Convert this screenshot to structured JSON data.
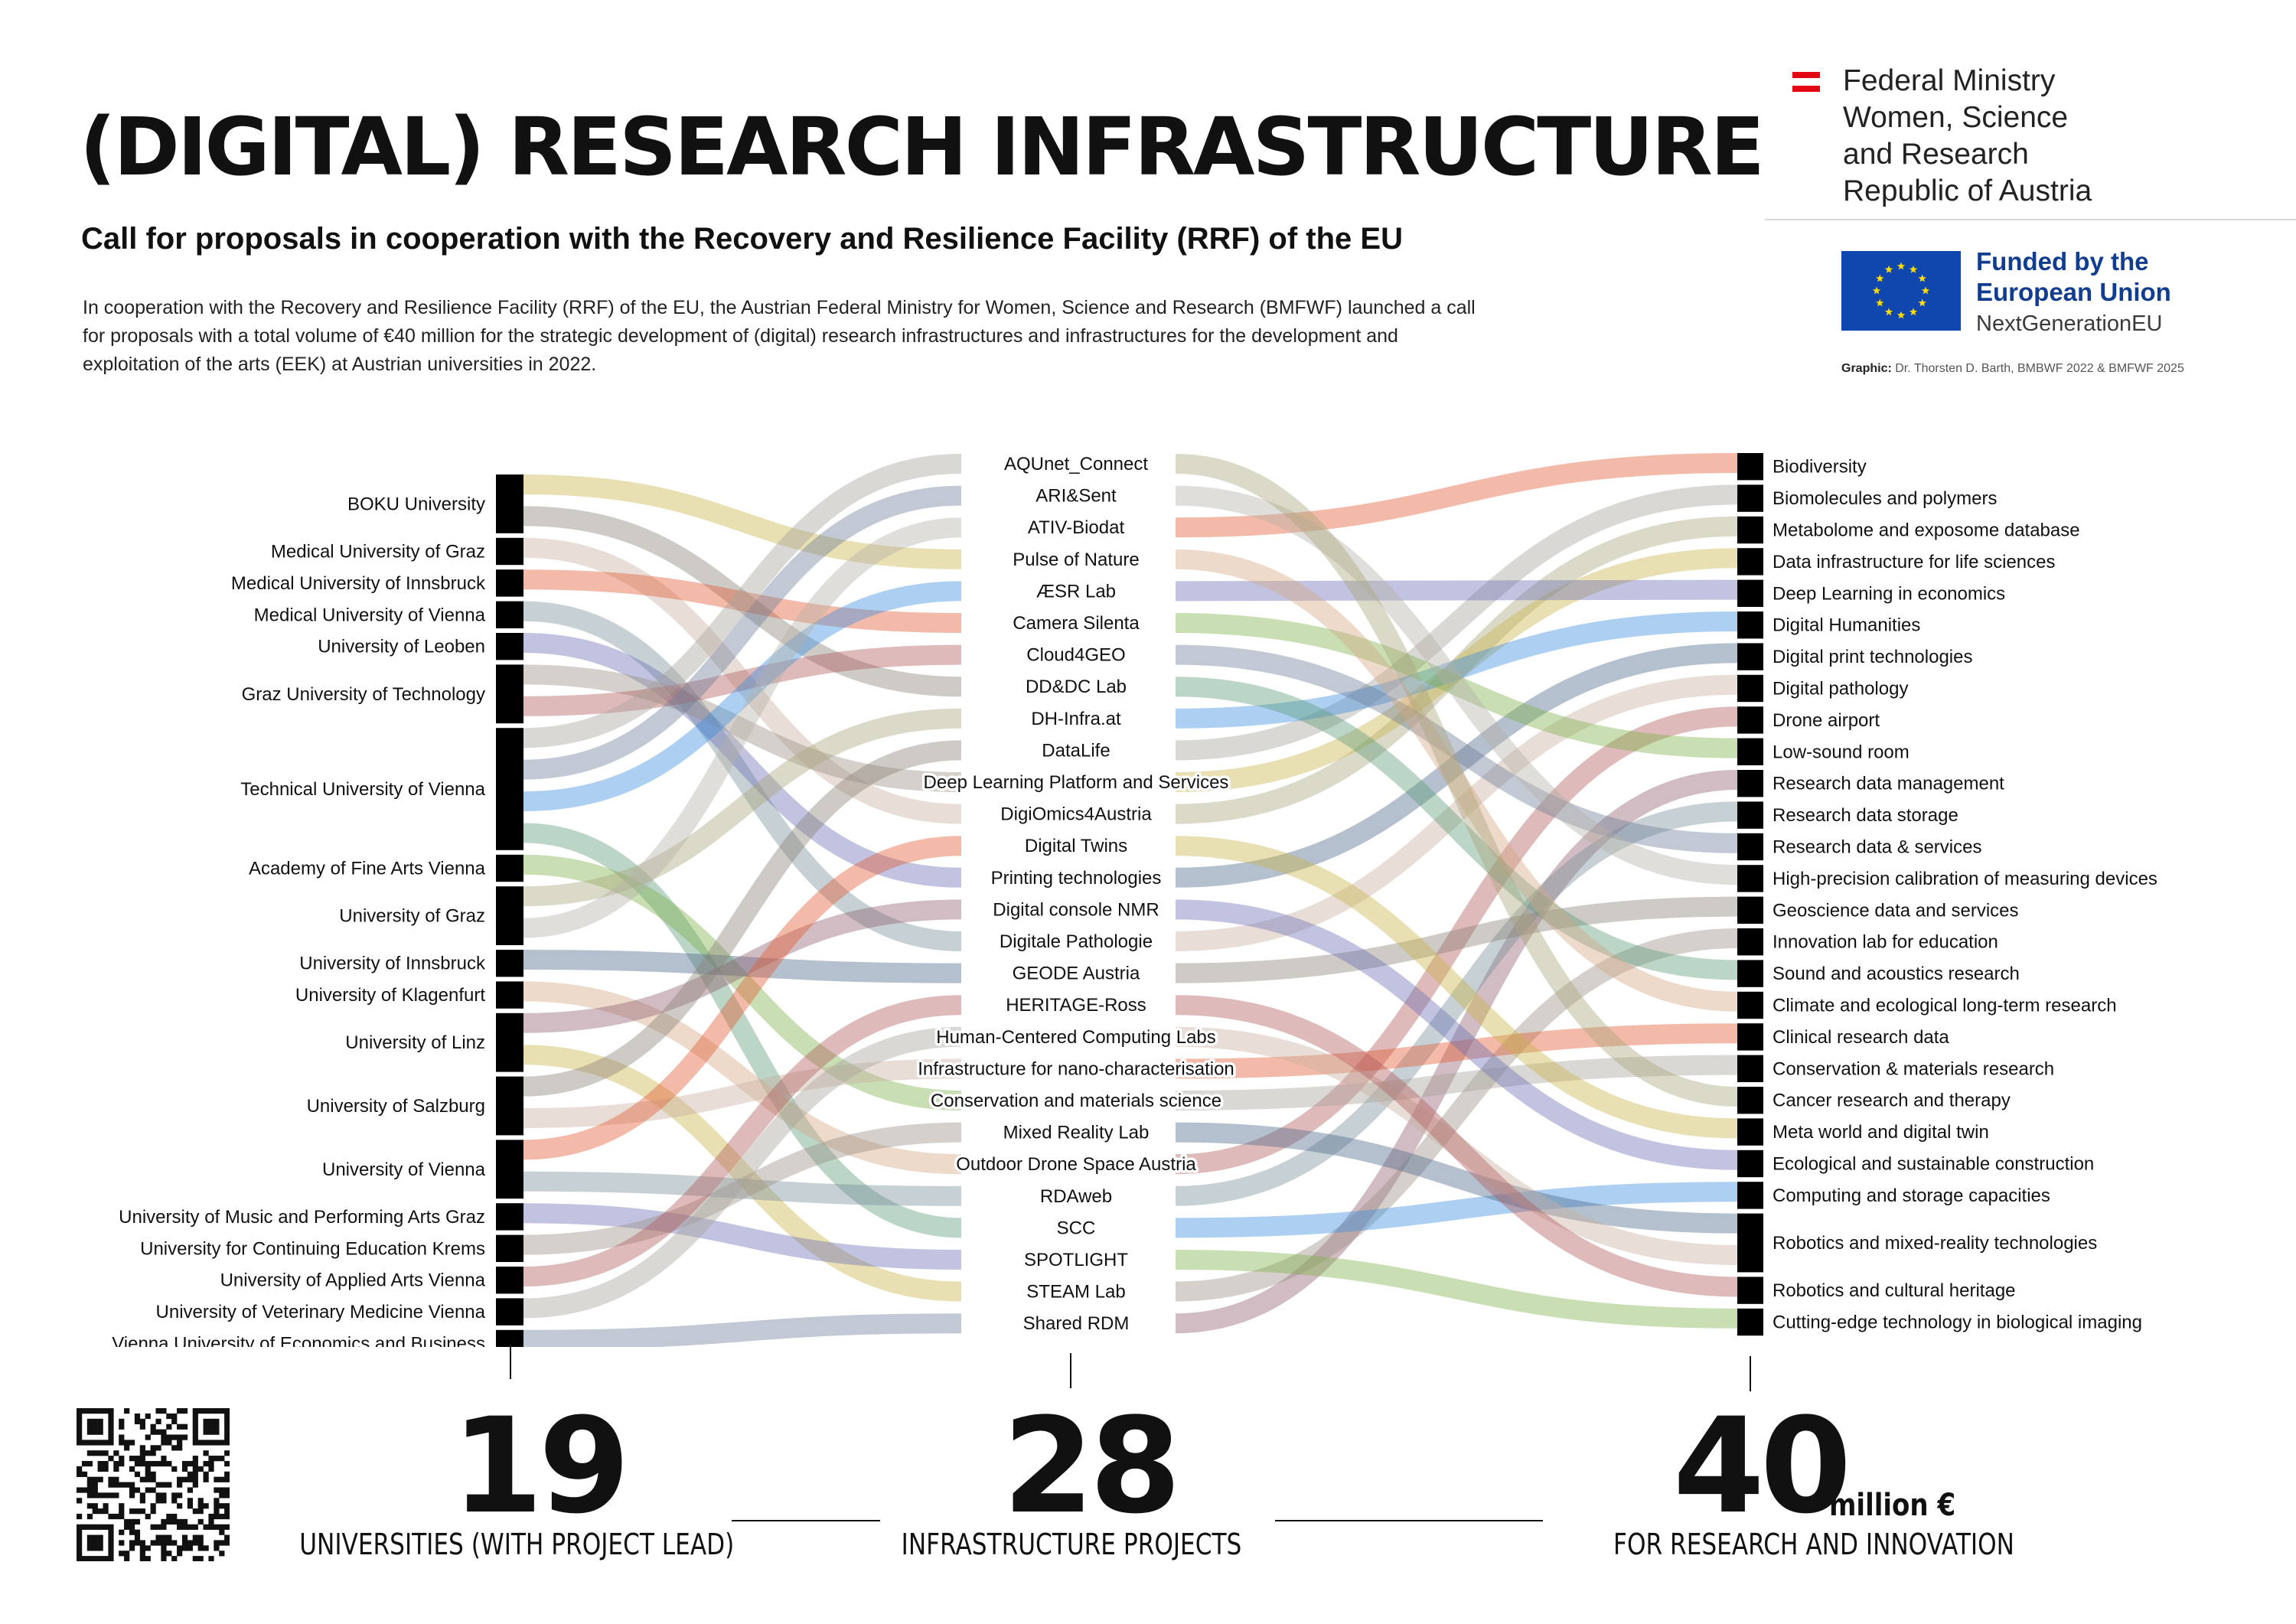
{
  "header": {
    "title": "(DIGITAL) RESEARCH INFRASTRUCTURE",
    "subtitle": "Call for proposals in cooperation with the Recovery and Resilience Facility (RRF) of the EU",
    "intro": "In cooperation with the Recovery and Resilience Facility (RRF) of the EU, the Austrian Federal Ministry for Women, Science and Research (BMFWF) launched a call for proposals with a total volume of €40 million for the strategic development of (digital) research infrastructures and infrastructures for the development and exploitation of the arts (EEK) at Austrian universities in 2022."
  },
  "branding": {
    "ministry_lines": [
      "Federal Ministry",
      "Women, Science",
      "and Research",
      "Republic of Austria"
    ],
    "eu_line1": "Funded by the",
    "eu_line2": "European Union",
    "eu_line3": "NextGenerationEU",
    "credit_label": "Graphic:",
    "credit_text": " Dr. Thorsten D. Barth, BMBWF 2022 & BMFWF 2025",
    "accent_red": "#e30613",
    "eu_blue": "#0f47af"
  },
  "universities": [
    {
      "name": "BOKU University",
      "projects": 2
    },
    {
      "name": "Medical University of Graz",
      "projects": 1
    },
    {
      "name": "Medical University of Innsbruck",
      "projects": 1
    },
    {
      "name": "Medical University of Vienna",
      "projects": 1
    },
    {
      "name": "University of Leoben",
      "projects": 1
    },
    {
      "name": "Graz University of Technology",
      "projects": 2
    },
    {
      "name": "Technical University of Vienna",
      "projects": 4
    },
    {
      "name": "Academy of Fine Arts Vienna",
      "projects": 1
    },
    {
      "name": "University of Graz",
      "projects": 2
    },
    {
      "name": "University of Innsbruck",
      "projects": 1
    },
    {
      "name": "University of Klagenfurt",
      "projects": 1
    },
    {
      "name": "University of Linz",
      "projects": 2
    },
    {
      "name": "University of Salzburg",
      "projects": 2
    },
    {
      "name": "University of Vienna",
      "projects": 2
    },
    {
      "name": "University of Music and Performing Arts Graz",
      "projects": 1
    },
    {
      "name": "University for Continuing Education Krems",
      "projects": 1
    },
    {
      "name": "University of Applied Arts Vienna",
      "projects": 1
    },
    {
      "name": "University of Veterinary Medicine Vienna",
      "projects": 1
    },
    {
      "name": "Vienna University of Economics and Business",
      "projects": 1
    }
  ],
  "projects": [
    "AQUnet_Connect",
    "ARI&Sent",
    "ATIV-Biodat",
    "Pulse of Nature",
    "ÆSR Lab",
    "Camera Silenta",
    "Cloud4GEO",
    "DD&DC Lab",
    "DH-Infra.at",
    "DataLife",
    "Deep Learning Platform and Services",
    "DigiOmics4Austria",
    "Digital Twins",
    "Printing technologies",
    "Digital console NMR",
    "Digitale Pathologie",
    "GEODE Austria",
    "HERITAGE-Ross",
    "Human-Centered Computing Labs",
    "Infrastructure for nano-characterisation",
    "Conservation and materials science",
    "Mixed Reality Lab",
    "Outdoor Drone Space Austria",
    "RDAweb",
    "SCC",
    "SPOTLIGHT",
    "STEAM Lab",
    "Shared RDM"
  ],
  "topics": [
    {
      "name": "Biodiversity",
      "weight": 1
    },
    {
      "name": "Biomolecules and polymers",
      "weight": 1
    },
    {
      "name": "Metabolome and exposome database",
      "weight": 1
    },
    {
      "name": "Data infrastructure for life sciences",
      "weight": 1
    },
    {
      "name": "Deep Learning in economics",
      "weight": 1
    },
    {
      "name": "Digital Humanities",
      "weight": 1
    },
    {
      "name": "Digital print technologies",
      "weight": 1
    },
    {
      "name": "Digital pathology",
      "weight": 1
    },
    {
      "name": "Drone airport",
      "weight": 1
    },
    {
      "name": "Low-sound room",
      "weight": 1
    },
    {
      "name": "Research data management",
      "weight": 1
    },
    {
      "name": "Research data storage",
      "weight": 1
    },
    {
      "name": "Research data & services",
      "weight": 1
    },
    {
      "name": "High-precision calibration of measuring devices",
      "weight": 1
    },
    {
      "name": "Geoscience data and services",
      "weight": 1
    },
    {
      "name": "Innovation lab for education",
      "weight": 1
    },
    {
      "name": "Sound and acoustics research",
      "weight": 1
    },
    {
      "name": "Climate and ecological long-term research",
      "weight": 1
    },
    {
      "name": "Clinical research data",
      "weight": 1
    },
    {
      "name": "Conservation & materials research",
      "weight": 1
    },
    {
      "name": "Cancer research and therapy",
      "weight": 1
    },
    {
      "name": "Meta world and digital twin",
      "weight": 1
    },
    {
      "name": "Ecological and sustainable construction",
      "weight": 1
    },
    {
      "name": "Computing and storage capacities",
      "weight": 1
    },
    {
      "name": "Robotics and mixed-reality technologies",
      "weight": 2
    },
    {
      "name": "Robotics and cultural heritage",
      "weight": 1
    },
    {
      "name": "Cutting-edge technology in biological imaging",
      "weight": 1
    }
  ],
  "links_left": [
    [
      0,
      3
    ],
    [
      0,
      7
    ],
    [
      1,
      11
    ],
    [
      2,
      5
    ],
    [
      3,
      15
    ],
    [
      4,
      13
    ],
    [
      5,
      10
    ],
    [
      5,
      6
    ],
    [
      6,
      0
    ],
    [
      6,
      1
    ],
    [
      6,
      4
    ],
    [
      6,
      24
    ],
    [
      7,
      20
    ],
    [
      8,
      8
    ],
    [
      8,
      2
    ],
    [
      9,
      16
    ],
    [
      10,
      22
    ],
    [
      11,
      14
    ],
    [
      11,
      26
    ],
    [
      12,
      9
    ],
    [
      12,
      19
    ],
    [
      13,
      12
    ],
    [
      13,
      23
    ],
    [
      14,
      25
    ],
    [
      15,
      21
    ],
    [
      16,
      17
    ],
    [
      17,
      18
    ],
    [
      18,
      27
    ]
  ],
  "links_right": [
    [
      2,
      0
    ],
    [
      9,
      1
    ],
    [
      11,
      2
    ],
    [
      10,
      3
    ],
    [
      4,
      4
    ],
    [
      8,
      5
    ],
    [
      13,
      6
    ],
    [
      15,
      7
    ],
    [
      22,
      8
    ],
    [
      5,
      9
    ],
    [
      27,
      10
    ],
    [
      23,
      11
    ],
    [
      6,
      12
    ],
    [
      1,
      13
    ],
    [
      16,
      14
    ],
    [
      26,
      15
    ],
    [
      7,
      16
    ],
    [
      3,
      17
    ],
    [
      19,
      18
    ],
    [
      20,
      19
    ],
    [
      0,
      20
    ],
    [
      12,
      21
    ],
    [
      14,
      22
    ],
    [
      24,
      23
    ],
    [
      21,
      24
    ],
    [
      18,
      24
    ],
    [
      17,
      25
    ],
    [
      25,
      26
    ]
  ],
  "palette": [
    "#c9b24a",
    "#8a8076",
    "#c7b1a0",
    "#e35b32",
    "#7a8f9a",
    "#6b6fb5",
    "#9a8f86",
    "#b05a5a",
    "#a8a39b",
    "#6d7e99",
    "#3b8fe0",
    "#5e9a7a",
    "#7fb04a",
    "#a9a47a",
    "#b6b0a8",
    "#4f6a8a",
    "#d3a882",
    "#8f5f6e"
  ],
  "stats": [
    {
      "number": "19",
      "caption": "UNIVERSITIES (WITH PROJECT LEAD)"
    },
    {
      "number": "28",
      "caption": "INFRASTRUCTURE PROJECTS"
    },
    {
      "number": "40",
      "unit": "million €",
      "caption": "FOR RESEARCH AND INNOVATION"
    }
  ]
}
